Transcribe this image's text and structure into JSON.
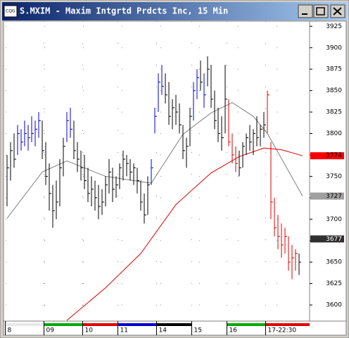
{
  "chart_data": {
    "type": "ohlc",
    "title": "S.MXIM - Maxim Intgrtd Prdcts Inc, 15 Min",
    "high": [
      3775,
      3790,
      3800,
      3810,
      3805,
      3815,
      3810,
      3820,
      3815,
      3825,
      3815,
      3790,
      3765,
      3740,
      3745,
      3770,
      3795,
      3825,
      3830,
      3815,
      3790,
      3780,
      3775,
      3760,
      3750,
      3745,
      3740,
      3735,
      3750,
      3770,
      3760,
      3750,
      3765,
      3780,
      3775,
      3770,
      3765,
      3760,
      3745,
      3730,
      3750,
      3770,
      3830,
      3870,
      3880,
      3870,
      3860,
      3840,
      3845,
      3835,
      3810,
      3795,
      3830,
      3860,
      3875,
      3885,
      3870,
      3890,
      3880,
      3850,
      3830,
      3820,
      3880,
      3840,
      3800,
      3785,
      3780,
      3790,
      3800,
      3810,
      3805,
      3820,
      3810,
      3825,
      3850,
      3790,
      3725,
      3705,
      3695,
      3690,
      3680,
      3670,
      3665,
      3660,
      3685
    ],
    "low": [
      3715,
      3745,
      3760,
      3775,
      3780,
      3785,
      3780,
      3790,
      3785,
      3795,
      3770,
      3740,
      3710,
      3690,
      3700,
      3715,
      3750,
      3790,
      3795,
      3770,
      3755,
      3745,
      3735,
      3720,
      3715,
      3710,
      3700,
      3705,
      3715,
      3730,
      3720,
      3725,
      3735,
      3745,
      3750,
      3745,
      3740,
      3730,
      3710,
      3695,
      3705,
      3740,
      3800,
      3825,
      3845,
      3835,
      3810,
      3805,
      3810,
      3800,
      3770,
      3760,
      3785,
      3815,
      3840,
      3850,
      3830,
      3855,
      3830,
      3805,
      3790,
      3780,
      3800,
      3785,
      3765,
      3755,
      3750,
      3760,
      3775,
      3780,
      3775,
      3785,
      3785,
      3795,
      3800,
      3700,
      3680,
      3665,
      3655,
      3660,
      3640,
      3630,
      3640,
      3635,
      3650
    ],
    "close": [
      3760,
      3780,
      3770,
      3800,
      3790,
      3800,
      3795,
      3800,
      3805,
      3815,
      3780,
      3750,
      3730,
      3710,
      3720,
      3760,
      3785,
      3815,
      3805,
      3780,
      3770,
      3760,
      3745,
      3730,
      3735,
      3725,
      3715,
      3720,
      3740,
      3755,
      3735,
      3740,
      3760,
      3770,
      3765,
      3755,
      3760,
      3745,
      3720,
      3705,
      3740,
      3760,
      3820,
      3860,
      3855,
      3845,
      3820,
      3830,
      3825,
      3810,
      3780,
      3785,
      3820,
      3850,
      3865,
      3860,
      3845,
      3875,
      3840,
      3815,
      3800,
      3795,
      3840,
      3790,
      3775,
      3765,
      3760,
      3785,
      3795,
      3790,
      3800,
      3795,
      3805,
      3810,
      3845,
      3720,
      3690,
      3680,
      3670,
      3680,
      3650,
      3655,
      3660,
      3650,
      3677
    ],
    "bar_colors": "kkkbbbbbbbkkkkkkkbbkkkkkkkkkkkkkkkkkkkkkkbbbbkkkkkkkkbbkbkkkkkkrrrkkkkkkkkrrrrrrrrrk",
    "palette": {
      "k": "#000000",
      "b": "#0000cc",
      "r": "#dd0000"
    },
    "days": [
      {
        "start": 0,
        "label": "8",
        "color": "#e8e8e8"
      },
      {
        "start": 11,
        "label": "09",
        "color": "#00aa00"
      },
      {
        "start": 22,
        "label": "10",
        "color": "#dd0000"
      },
      {
        "start": 32,
        "label": "11",
        "color": "#0000cc"
      },
      {
        "start": 43,
        "label": "14",
        "color": "#000000"
      },
      {
        "start": 53,
        "label": "15",
        "color": "#ffffff"
      },
      {
        "start": 63,
        "label": "16",
        "color": "#00aa00"
      },
      {
        "start": 74,
        "label": "17-22:30",
        "color": "#dd0000"
      }
    ],
    "ma": [
      {
        "color": "#808080",
        "points": [
          [
            0,
            3701
          ],
          [
            10,
            3755
          ],
          [
            17,
            3768
          ],
          [
            28,
            3750
          ],
          [
            41,
            3742
          ],
          [
            50,
            3799
          ],
          [
            58,
            3824
          ],
          [
            64,
            3836
          ],
          [
            70,
            3820
          ],
          [
            74,
            3800
          ],
          [
            84,
            3727
          ]
        ]
      },
      {
        "color": "#dd0000",
        "points": [
          [
            17,
            3582
          ],
          [
            28,
            3620
          ],
          [
            38,
            3660
          ],
          [
            48,
            3717
          ],
          [
            58,
            3754
          ],
          [
            66,
            3773
          ],
          [
            73,
            3783
          ],
          [
            78,
            3781
          ],
          [
            84,
            3774
          ]
        ]
      }
    ],
    "price_labels": [
      {
        "value": 3774,
        "bg": "#ff0000",
        "fg": "#000000"
      },
      {
        "value": 3727,
        "bg": "#a0a0a0",
        "fg": "#000000"
      },
      {
        "value": 3677,
        "bg": "#303030",
        "fg": "#ffffff"
      }
    ],
    "ylim": [
      3582,
      3931
    ],
    "yticks": [
      3600,
      3625,
      3650,
      3675,
      3700,
      3725,
      3750,
      3775,
      3800,
      3825,
      3850,
      3875,
      3900,
      3925
    ],
    "grid": true
  }
}
